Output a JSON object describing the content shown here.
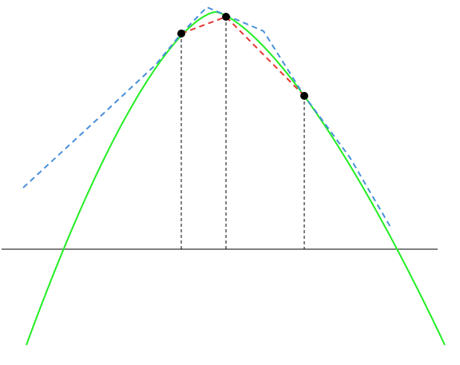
{
  "diagram": {
    "type": "parabolic-interpolation-illustration",
    "colors": {
      "axis": "#000000",
      "function_curve": "#22ee22",
      "parabola_fit": "#4a90d9",
      "secant_lines": "#e53935",
      "sample_points": "#000000",
      "guide_lines": "#000000",
      "background": "#ffffff"
    },
    "elements": [
      "horizontal-axis",
      "function-curve",
      "dashed-parabola-fit",
      "dashed-secant-lines",
      "vertical-guides",
      "sample-points"
    ],
    "sample_point_count": 3
  }
}
